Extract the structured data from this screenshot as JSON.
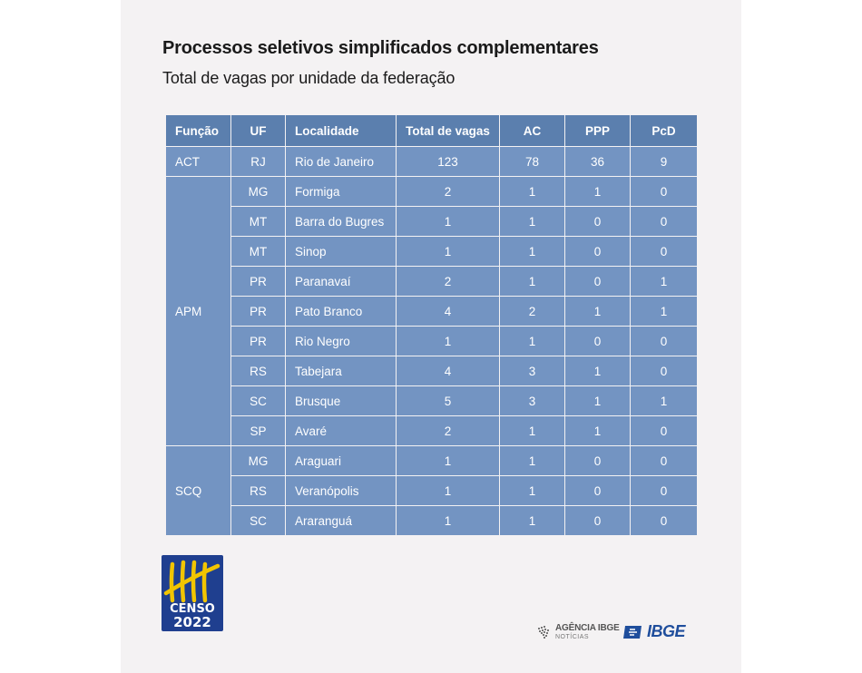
{
  "title": "Processos seletivos simplificados complementares",
  "subtitle": "Total de vagas por unidade da federação",
  "table": {
    "headers": [
      "Função",
      "UF",
      "Localidade",
      "Total de vagas",
      "AC",
      "PPP",
      "PcD"
    ],
    "groups": [
      {
        "funcao": "ACT",
        "rows": [
          [
            "RJ",
            "Rio de Janeiro",
            "123",
            "78",
            "36",
            "9"
          ]
        ]
      },
      {
        "funcao": "APM",
        "rows": [
          [
            "MG",
            "Formiga",
            "2",
            "1",
            "1",
            "0"
          ],
          [
            "MT",
            "Barra do Bugres",
            "1",
            "1",
            "0",
            "0"
          ],
          [
            "MT",
            "Sinop",
            "1",
            "1",
            "0",
            "0"
          ],
          [
            "PR",
            "Paranavaí",
            "2",
            "1",
            "0",
            "1"
          ],
          [
            "PR",
            "Pato Branco",
            "4",
            "2",
            "1",
            "1"
          ],
          [
            "PR",
            "Rio Negro",
            "1",
            "1",
            "0",
            "0"
          ],
          [
            "RS",
            "Tabejara",
            "4",
            "3",
            "1",
            "0"
          ],
          [
            "SC",
            "Brusque",
            "5",
            "3",
            "1",
            "1"
          ],
          [
            "SP",
            "Avaré",
            "2",
            "1",
            "1",
            "0"
          ]
        ]
      },
      {
        "funcao": "SCQ",
        "rows": [
          [
            "MG",
            "Araguari",
            "1",
            "1",
            "0",
            "0"
          ],
          [
            "RS",
            "Veranópolis",
            "1",
            "1",
            "0",
            "0"
          ],
          [
            "SC",
            "Araranguá",
            "1",
            "1",
            "0",
            "0"
          ]
        ]
      }
    ]
  },
  "logos": {
    "censo_word": "CENSO",
    "censo_year": "2022",
    "agencia_name": "AGÊNCIA IBGE",
    "agencia_sub": "NOTÍCIAS",
    "ibge": "IBGE"
  },
  "colors": {
    "header_bg": "#5b7fae",
    "cell_bg": "#7394c2",
    "card_bg": "#f4f2f3",
    "censo_blue": "#1f3f8f",
    "censo_yellow": "#f2c500",
    "ibge_blue": "#1f4e9c"
  }
}
